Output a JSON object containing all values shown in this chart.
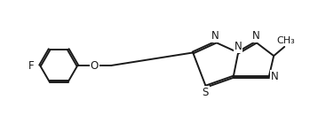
{
  "bg_color": "#ffffff",
  "line_color": "#1a1a1a",
  "line_width": 1.4,
  "font_size": 8.5,
  "methyl_text": "CH₃",
  "xlim": [
    -4.0,
    5.8
  ],
  "ylim": [
    -1.5,
    1.5
  ]
}
